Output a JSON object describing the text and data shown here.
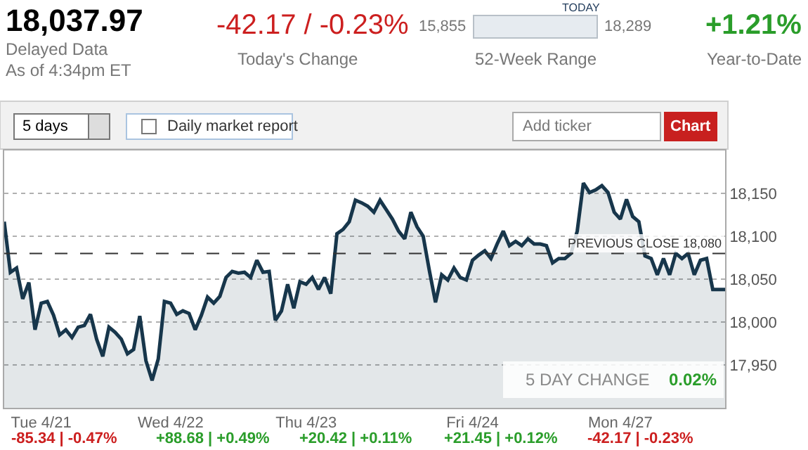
{
  "chart_data": {
    "type": "area",
    "categories": [
      null,
      null,
      null,
      null,
      null,
      null,
      "Tue 4/21",
      null,
      null,
      null,
      null,
      null,
      null,
      null,
      null,
      null,
      null,
      null,
      null,
      null,
      null,
      null,
      null,
      null,
      null,
      null,
      null,
      "Wed 4/22",
      null,
      null,
      null,
      null,
      null,
      null,
      null,
      null,
      null,
      null,
      null,
      null,
      null,
      null,
      null,
      null,
      null,
      null,
      null,
      null,
      null,
      "Thu 4/23",
      null,
      null,
      null,
      null,
      null,
      null,
      null,
      null,
      null,
      null,
      null,
      null,
      null,
      null,
      null,
      null,
      null,
      null,
      null,
      null,
      null,
      null,
      null,
      null,
      null,
      null,
      "Fri 4/24",
      null,
      null,
      null,
      null,
      null,
      null,
      null,
      null,
      null,
      null,
      null,
      null,
      null,
      null,
      null,
      null,
      null,
      null,
      null,
      null,
      null,
      null,
      null,
      "Mon 4/27",
      null,
      null,
      null,
      null,
      null,
      null,
      null,
      null,
      null,
      null,
      null,
      null,
      null,
      null,
      null,
      null,
      null
    ],
    "series": [
      {
        "color": "#17364b",
        "values": [
          18117,
          18058,
          18063,
          18027,
          18046,
          17991,
          18022,
          18024,
          18008,
          17985,
          17991,
          17982,
          17994,
          17996,
          18009,
          17980,
          17960,
          17994,
          17988,
          17980,
          17963,
          17968,
          18007,
          17955,
          17932,
          17957,
          18024,
          18022,
          18009,
          18013,
          18010,
          17991,
          18008,
          18029,
          18022,
          18030,
          18052,
          18059,
          18057,
          18058,
          18052,
          18072,
          18058,
          18059,
          18002,
          18013,
          18044,
          18016,
          18047,
          18044,
          18052,
          18038,
          18052,
          18033,
          18103,
          18108,
          18117,
          18142,
          18139,
          18135,
          18128,
          18142,
          18131,
          18120,
          18106,
          18097,
          18128,
          18111,
          18100,
          18060,
          18023,
          18055,
          18049,
          18063,
          18052,
          18049,
          18072,
          18078,
          18083,
          18074,
          18091,
          18106,
          18089,
          18094,
          18089,
          18097,
          18091,
          18091,
          18089,
          18069,
          18074,
          18074,
          18080,
          18106,
          18162,
          18151,
          18154,
          18159,
          18151,
          18128,
          18120,
          18143,
          18123,
          18117,
          18077,
          18074,
          18055,
          18074,
          18055,
          18080,
          18074,
          18080,
          18055,
          18072,
          18074,
          18038,
          18038,
          18038
        ]
      }
    ],
    "ylim": [
      17900,
      18200
    ],
    "yticks": [
      {
        "value": 17950,
        "label": "17,950"
      },
      {
        "value": 18000,
        "label": "18,000"
      },
      {
        "value": 18050,
        "label": "18,050"
      },
      {
        "value": 18100,
        "label": "18,100"
      },
      {
        "value": 18150,
        "label": "18,150"
      }
    ],
    "grid": "y",
    "ref_lines": [
      {
        "axis": "y",
        "value": 18080,
        "label": "PREVIOUS CLOSE 18,080",
        "color": "#333333",
        "line_style": "dashed"
      }
    ],
    "annotations": [
      "18,037.97",
      "Delayed Data",
      "As of 4:34pm ET",
      "-42.17 / -0.23%",
      "Today's Change",
      "15,855",
      "18,289",
      "TODAY",
      "52-Week Range",
      "+1.21%",
      "Year-to-Date",
      "5 days",
      "Daily market report",
      "Add ticker",
      "Chart",
      "5 DAY CHANGE",
      "0.02%",
      "-85.34 | -0.47%",
      "+88.68 | +0.49%",
      "+20.42 | +0.11%",
      "+21.45 | +0.12%",
      "-42.17 | -0.23%"
    ]
  }
}
